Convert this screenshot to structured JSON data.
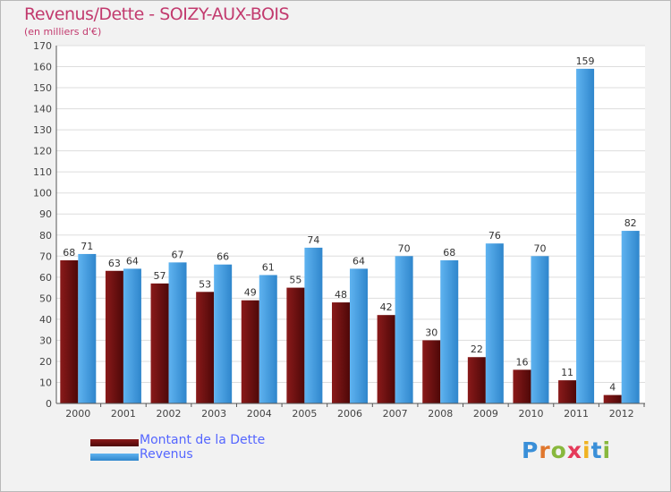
{
  "title": "Revenus/Dette - SOIZY-AUX-BOIS",
  "subtitle": "(en milliers d'€)",
  "logo_text": "Proxiti",
  "chart_data": {
    "type": "bar",
    "categories": [
      "2000",
      "2001",
      "2002",
      "2003",
      "2004",
      "2005",
      "2006",
      "2007",
      "2008",
      "2009",
      "2010",
      "2011",
      "2012"
    ],
    "series": [
      {
        "name": "Montant de la Dette",
        "color": "#6b0f0f",
        "values": [
          68,
          63,
          57,
          53,
          49,
          55,
          48,
          42,
          30,
          22,
          16,
          11,
          4
        ]
      },
      {
        "name": "Revenus",
        "color": "#4aa3e6",
        "values": [
          71,
          64,
          67,
          66,
          61,
          74,
          64,
          70,
          68,
          76,
          70,
          159,
          82
        ]
      }
    ],
    "yticks": [
      0,
      10,
      20,
      30,
      40,
      50,
      60,
      70,
      80,
      90,
      100,
      110,
      120,
      130,
      140,
      150,
      160,
      170
    ],
    "ylim": [
      0,
      170
    ],
    "grid": true,
    "legend_position": "bottom-left"
  }
}
